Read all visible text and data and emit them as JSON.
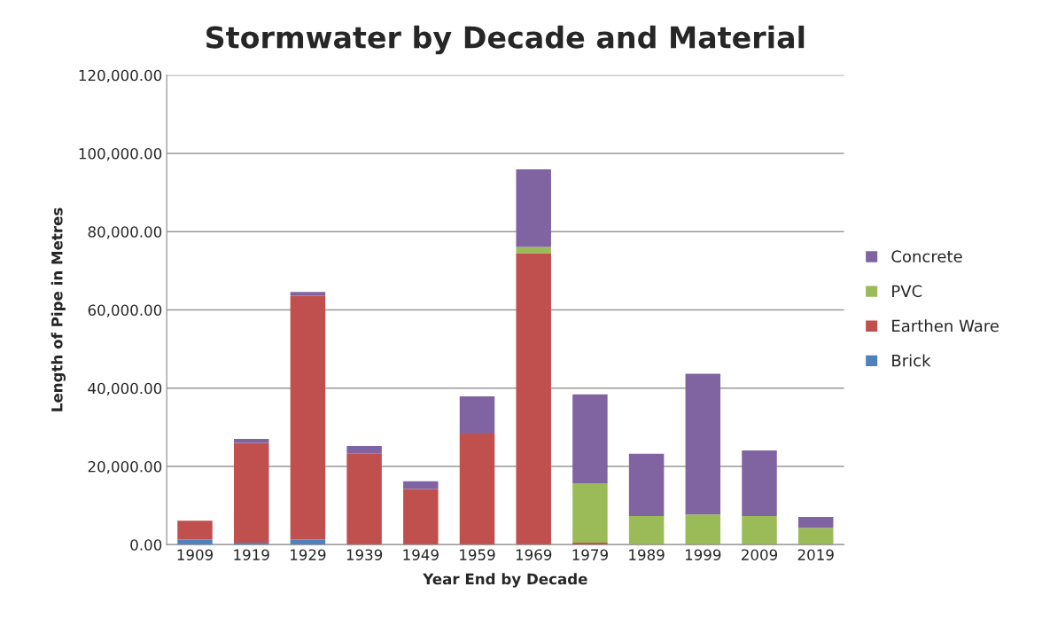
{
  "chart_data": {
    "type": "bar",
    "title": "Stormwater by Decade and Material",
    "xlabel": "Year End by Decade",
    "ylabel": "Length of Pipe in Metres",
    "categories": [
      "1909",
      "1919",
      "1929",
      "1939",
      "1949",
      "1959",
      "1969",
      "1979",
      "1989",
      "1999",
      "2009",
      "2019"
    ],
    "stacked": true,
    "series": [
      {
        "name": "Brick",
        "color": "#4f81bd",
        "values": [
          1300,
          500,
          1300,
          0,
          0,
          0,
          0,
          0,
          0,
          0,
          0,
          0
        ]
      },
      {
        "name": "Earthen Ware",
        "color": "#c0504d",
        "values": [
          4800,
          25500,
          62300,
          23200,
          14200,
          28400,
          74500,
          500,
          0,
          0,
          0,
          0
        ]
      },
      {
        "name": "PVC",
        "color": "#9bbb59",
        "values": [
          0,
          0,
          0,
          0,
          0,
          0,
          1600,
          15200,
          7300,
          7700,
          7300,
          4300
        ]
      },
      {
        "name": "Concrete",
        "color": "#8064a2",
        "values": [
          0,
          1000,
          1000,
          2000,
          2000,
          9500,
          19800,
          22700,
          15900,
          36000,
          16800,
          2800
        ]
      }
    ],
    "ylim": [
      0,
      120000
    ],
    "yticks": [
      {
        "value": 0,
        "label": "0.00"
      },
      {
        "value": 20000,
        "label": "20,000.00"
      },
      {
        "value": 40000,
        "label": "40,000.00"
      },
      {
        "value": 60000,
        "label": "60,000.00"
      },
      {
        "value": 80000,
        "label": "80,000.00"
      },
      {
        "value": 100000,
        "label": "100,000.00"
      },
      {
        "value": 120000,
        "label": "120,000.00"
      }
    ],
    "grid": "y",
    "legend": "right"
  }
}
